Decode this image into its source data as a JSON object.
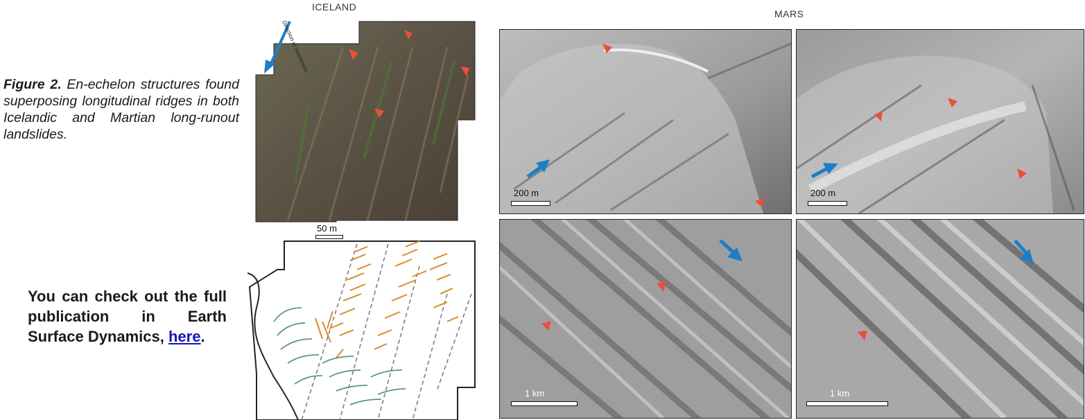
{
  "caption": {
    "label": "Figure 2.",
    "text": " En-echelon structures found superposing longitudinal ridges in both Icelandic and Martian long-runout landslides."
  },
  "publication_note": {
    "text": "You can check out the full publication in Earth Surface Dynamics, ",
    "link_text": "here",
    "trailing": "."
  },
  "headings": {
    "iceland": "ICELAND",
    "mars": "MARS"
  },
  "iceland": {
    "direction_label": "Direction of movement",
    "scale_label": "50 m"
  },
  "mars_panels": [
    {
      "scale_label": "200 m"
    },
    {
      "scale_label": "200 m"
    },
    {
      "scale_label": "1 km"
    },
    {
      "scale_label": "1 km"
    }
  ],
  "colors": {
    "arrow_red": "#e8503a",
    "arrow_blue": "#1a7fc8",
    "ridge_orange": "#d98a2a",
    "ridge_green": "#5a9a6e"
  }
}
